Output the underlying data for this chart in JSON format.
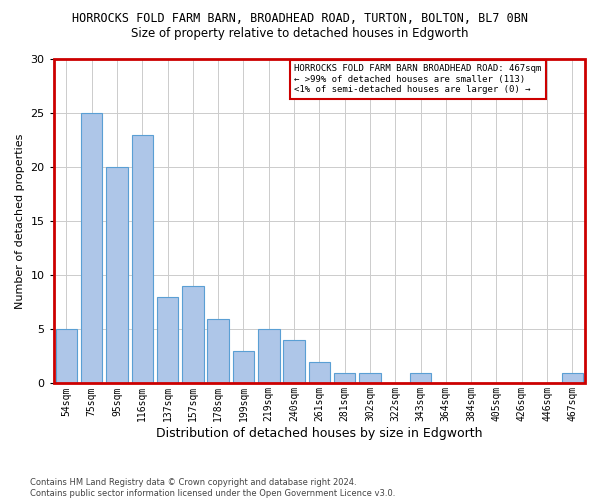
{
  "title_line1": "HORROCKS FOLD FARM BARN, BROADHEAD ROAD, TURTON, BOLTON, BL7 0BN",
  "title_line2": "Size of property relative to detached houses in Edgworth",
  "xlabel": "Distribution of detached houses by size in Edgworth",
  "ylabel": "Number of detached properties",
  "categories": [
    "54sqm",
    "75sqm",
    "95sqm",
    "116sqm",
    "137sqm",
    "157sqm",
    "178sqm",
    "199sqm",
    "219sqm",
    "240sqm",
    "261sqm",
    "281sqm",
    "302sqm",
    "322sqm",
    "343sqm",
    "364sqm",
    "384sqm",
    "405sqm",
    "426sqm",
    "446sqm",
    "467sqm"
  ],
  "values": [
    5,
    25,
    20,
    23,
    8,
    9,
    6,
    3,
    5,
    4,
    2,
    1,
    1,
    0,
    1,
    0,
    0,
    0,
    0,
    0,
    1
  ],
  "bar_color": "#aec6e8",
  "bar_edge_color": "#5a9fd4",
  "ylim": [
    0,
    30
  ],
  "yticks": [
    0,
    5,
    10,
    15,
    20,
    25,
    30
  ],
  "annotation_title": "HORROCKS FOLD FARM BARN BROADHEAD ROAD: 467sqm",
  "annotation_line2": "← >99% of detached houses are smaller (113)",
  "annotation_line3": "<1% of semi-detached houses are larger (0) →",
  "annotation_box_color": "#ffffff",
  "annotation_box_edge": "#cc0000",
  "footer_line1": "Contains HM Land Registry data © Crown copyright and database right 2024.",
  "footer_line2": "Contains public sector information licensed under the Open Government Licence v3.0.",
  "grid_color": "#cccccc",
  "bg_color": "#ffffff",
  "red_border_color": "#cc0000"
}
